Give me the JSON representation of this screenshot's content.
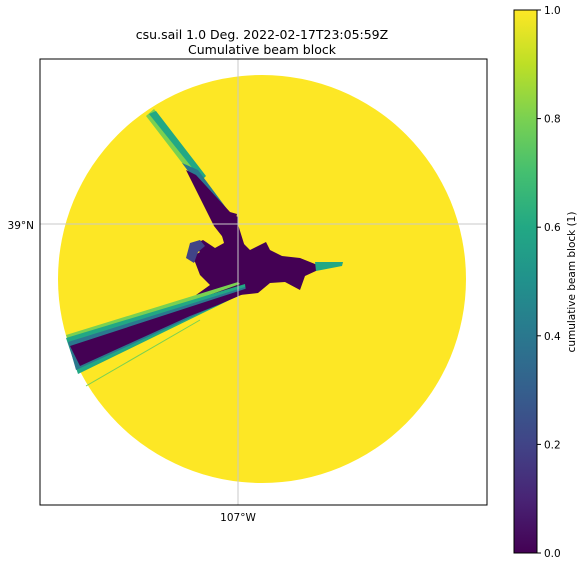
{
  "chart_data": {
    "type": "heatmap",
    "title": "csu.sail 1.0 Deg. 2022-02-17T23:05:59Z",
    "subtitle": "Cumulative beam block",
    "latitude_label": "39°N",
    "longitude_label": "107°W",
    "grid": true,
    "colorbar": {
      "label": "cumulative beam block (1)",
      "colormap": "viridis",
      "range": [
        0.0,
        1.0
      ],
      "ticks": [
        "0.0",
        "0.2",
        "0.4",
        "0.6",
        "0.8",
        "1.0"
      ]
    },
    "blocked_sectors": [
      {
        "direction": "northwest",
        "value": 0.0
      },
      {
        "direction": "west-southwest",
        "value": 0.0
      },
      {
        "direction": "east",
        "value": 0.0
      }
    ],
    "unblocked_value": 1.0
  },
  "colors": {
    "viridis_0": "#440154",
    "viridis_02": "#414487",
    "viridis_04": "#2a788e",
    "viridis_06": "#22a884",
    "viridis_08": "#7ad151",
    "viridis_1": "#fde725",
    "grid": "#c8c8c8"
  }
}
